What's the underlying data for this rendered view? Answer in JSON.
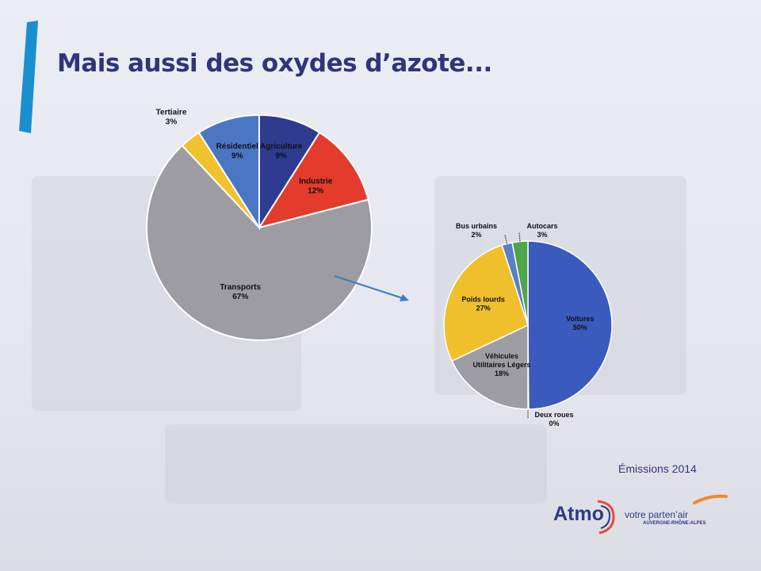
{
  "slide": {
    "title": "Mais aussi des oxydes d’azote...",
    "footer_note": "Émissions 2014"
  },
  "logo": {
    "wordmark": "Atmo",
    "tagline": "votre parten’air",
    "region": "AUVERGNE-RHÔNE-ALPES"
  },
  "colors": {
    "title": "#2f3579",
    "accent": "#1a8fd0",
    "arrow": "#3b7dc4"
  },
  "chart_data": [
    {
      "type": "pie",
      "title": "",
      "label_sep": "\n",
      "slices": [
        {
          "label": "Agriculture",
          "value": 9,
          "value_label": "9%",
          "color": "#2e3b8f"
        },
        {
          "label": "Industrie",
          "value": 12,
          "value_label": "12%",
          "color": "#e33b2c"
        },
        {
          "label": "Transports",
          "value": 67,
          "value_label": "67%",
          "color": "#9c9ca2"
        },
        {
          "label": "Tertiaire",
          "value": 3,
          "value_label": "3%",
          "color": "#f2c22e"
        },
        {
          "label": "Résidentiel",
          "value": 9,
          "value_label": "9%",
          "color": "#4b76c4"
        }
      ]
    },
    {
      "type": "pie",
      "title": "",
      "slices": [
        {
          "label": "Voitures",
          "value": 50,
          "value_label": "50%",
          "color": "#3a5bbd"
        },
        {
          "label": "Deux roues",
          "value": 0,
          "value_label": "0%",
          "color": "#c0392b"
        },
        {
          "label": "Véhicules\nUtilitaires Légers",
          "value": 18,
          "value_label": "18%",
          "color": "#9d9da3"
        },
        {
          "label": "Poids lourds",
          "value": 27,
          "value_label": "27%",
          "color": "#f0c02c"
        },
        {
          "label": "Bus urbains",
          "value": 2,
          "value_label": "2%",
          "color": "#5b7fc6"
        },
        {
          "label": "Autocars",
          "value": 3,
          "value_label": "3%",
          "color": "#4fa54a"
        }
      ]
    }
  ]
}
